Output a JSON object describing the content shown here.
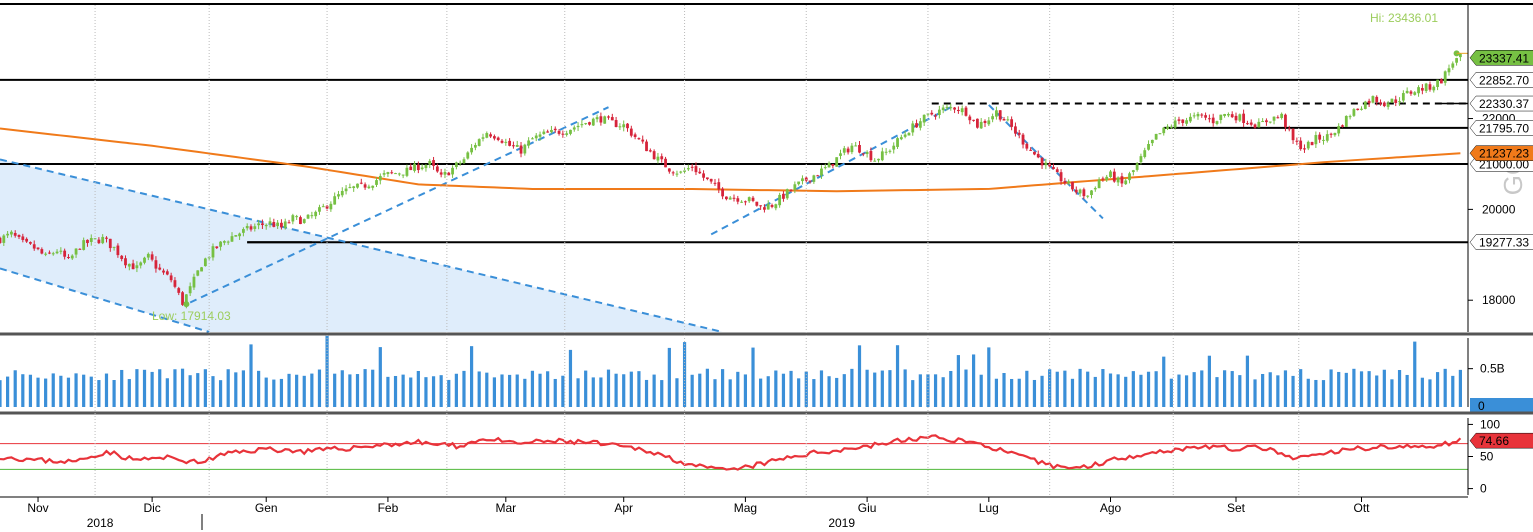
{
  "chart_data": {
    "type": "candlestick",
    "price_panel": {
      "ylim": [
        17300,
        24500
      ],
      "y_ticks": [
        {
          "value": 18000,
          "label": "18000"
        },
        {
          "value": 20000,
          "label": "20000"
        },
        {
          "value": 22000,
          "label": "22000"
        }
      ],
      "horizontal_levels": [
        {
          "value": 22852.7,
          "label": "22852.70",
          "style": "solid"
        },
        {
          "value": 22330.37,
          "label": "22330.37",
          "style": "dashed"
        },
        {
          "value": 21795.7,
          "label": "21795.70",
          "style": "solid"
        },
        {
          "value": 21000.0,
          "label": "21000.00",
          "style": "solid"
        },
        {
          "value": 19277.33,
          "label": "19277.33",
          "style": "solid"
        }
      ],
      "last_price": {
        "value": 23337.41,
        "label": "23337.41",
        "color": "#76c043"
      },
      "moving_average": {
        "value": 21237.23,
        "label": "21237.23",
        "color": "#f07a1a"
      },
      "high_annotation": {
        "text": "Hi: 23436.01",
        "value": 23436.01
      },
      "low_annotation": {
        "text": "Low: 17914.03",
        "value": 17914.03
      },
      "vertical_text": "GO",
      "close_path": [
        [
          0,
          19350
        ],
        [
          3,
          19450
        ],
        [
          6,
          19250
        ],
        [
          9,
          19150
        ],
        [
          12,
          18950
        ],
        [
          15,
          19100
        ],
        [
          18,
          18850
        ],
        [
          21,
          19200
        ],
        [
          24,
          19300
        ],
        [
          27,
          19350
        ],
        [
          30,
          19150
        ],
        [
          33,
          18850
        ],
        [
          36,
          18700
        ],
        [
          39,
          18950
        ],
        [
          42,
          18650
        ],
        [
          45,
          18450
        ],
        [
          48,
          17950
        ],
        [
          50,
          18250
        ],
        [
          53,
          18800
        ],
        [
          56,
          19100
        ],
        [
          59,
          19300
        ],
        [
          62,
          19450
        ],
        [
          65,
          19550
        ],
        [
          68,
          19650
        ],
        [
          71,
          19700
        ],
        [
          74,
          19600
        ],
        [
          77,
          19800
        ],
        [
          80,
          19750
        ],
        [
          83,
          19900
        ],
        [
          86,
          20100
        ],
        [
          89,
          20300
        ],
        [
          92,
          20450
        ],
        [
          95,
          20500
        ],
        [
          98,
          20600
        ],
        [
          101,
          20750
        ],
        [
          104,
          20800
        ],
        [
          107,
          20850
        ],
        [
          110,
          20950
        ],
        [
          113,
          21000
        ],
        [
          116,
          20700
        ],
        [
          119,
          20900
        ],
        [
          122,
          21100
        ],
        [
          125,
          21450
        ],
        [
          128,
          21700
        ],
        [
          131,
          21600
        ],
        [
          134,
          21400
        ],
        [
          137,
          21300
        ],
        [
          140,
          21550
        ],
        [
          143,
          21650
        ],
        [
          146,
          21700
        ],
        [
          149,
          21750
        ],
        [
          152,
          21850
        ],
        [
          155,
          21950
        ],
        [
          158,
          22000
        ],
        [
          161,
          21900
        ],
        [
          164,
          21850
        ],
        [
          167,
          21600
        ],
        [
          170,
          21350
        ],
        [
          173,
          21100
        ],
        [
          176,
          20900
        ],
        [
          179,
          20800
        ],
        [
          182,
          20950
        ],
        [
          185,
          20700
        ],
        [
          188,
          20500
        ],
        [
          191,
          20300
        ],
        [
          194,
          20250
        ],
        [
          197,
          20200
        ],
        [
          200,
          20050
        ],
        [
          203,
          20100
        ],
        [
          206,
          20300
        ],
        [
          209,
          20500
        ],
        [
          212,
          20650
        ],
        [
          215,
          20800
        ],
        [
          218,
          20950
        ],
        [
          221,
          21200
        ],
        [
          224,
          21400
        ],
        [
          227,
          21300
        ],
        [
          230,
          21100
        ],
        [
          233,
          21250
        ],
        [
          236,
          21500
        ],
        [
          239,
          21750
        ],
        [
          242,
          21950
        ],
        [
          245,
          22100
        ],
        [
          248,
          22200
        ],
        [
          251,
          22250
        ],
        [
          254,
          22150
        ],
        [
          257,
          21850
        ],
        [
          260,
          22000
        ],
        [
          262,
          22150
        ],
        [
          265,
          21900
        ],
        [
          268,
          21600
        ],
        [
          271,
          21300
        ],
        [
          274,
          21050
        ],
        [
          277,
          20800
        ],
        [
          280,
          20600
        ],
        [
          283,
          20400
        ],
        [
          286,
          20300
        ],
        [
          289,
          20650
        ],
        [
          292,
          20750
        ],
        [
          295,
          20550
        ],
        [
          298,
          20850
        ],
        [
          301,
          21250
        ],
        [
          304,
          21600
        ],
        [
          307,
          21800
        ],
        [
          310,
          21950
        ],
        [
          313,
          22000
        ],
        [
          316,
          22050
        ],
        [
          319,
          21950
        ],
        [
          322,
          22100
        ],
        [
          325,
          22050
        ],
        [
          328,
          21950
        ],
        [
          331,
          21850
        ],
        [
          334,
          22000
        ],
        [
          337,
          22050
        ],
        [
          340,
          21500
        ],
        [
          343,
          21350
        ],
        [
          346,
          21550
        ],
        [
          349,
          21600
        ],
        [
          352,
          21800
        ],
        [
          355,
          22100
        ],
        [
          358,
          22300
        ],
        [
          361,
          22450
        ],
        [
          364,
          22350
        ],
        [
          367,
          22400
        ],
        [
          370,
          22550
        ],
        [
          373,
          22650
        ],
        [
          376,
          22700
        ],
        [
          379,
          22850
        ],
        [
          382,
          23250
        ],
        [
          384,
          23337
        ]
      ],
      "trendlines": [
        {
          "from": [
            50,
            17950
          ],
          "to": [
            160,
            22250
          ],
          "color": "#3a8fd8",
          "style": "dashed"
        },
        {
          "from": [
            187,
            19450
          ],
          "to": [
            250,
            22250
          ],
          "color": "#3a8fd8",
          "style": "dashed"
        },
        {
          "from": [
            260,
            22300
          ],
          "to": [
            290,
            19800
          ],
          "color": "#3a8fd8",
          "style": "dashed"
        },
        {
          "from": [
            0,
            21100
          ],
          "to": [
            190,
            17300
          ],
          "color": "#3a8fd8",
          "style": "dashed"
        },
        {
          "from": [
            0,
            18700
          ],
          "to": [
            55,
            17300
          ],
          "color": "#3a8fd8",
          "style": "dashed"
        }
      ],
      "local_levels": [
        {
          "from": 65,
          "to": 82,
          "value": 19277.33
        },
        {
          "from": 245,
          "to": 270,
          "value": 22330.37,
          "style": "dashed"
        },
        {
          "from": 306,
          "to": 384,
          "value": 21795.7
        }
      ],
      "ma_path": [
        [
          0,
          21780
        ],
        [
          40,
          21400
        ],
        [
          80,
          20950
        ],
        [
          110,
          20550
        ],
        [
          140,
          20450
        ],
        [
          180,
          20450
        ],
        [
          220,
          20400
        ],
        [
          260,
          20450
        ],
        [
          290,
          20650
        ],
        [
          320,
          20850
        ],
        [
          350,
          21050
        ],
        [
          384,
          21237
        ]
      ]
    },
    "volume_panel": {
      "ylim": [
        0,
        0.9
      ],
      "y_ticks": [
        {
          "value": 0.5,
          "label": "0.5B"
        }
      ],
      "zero_label": "0",
      "color": "#3a8fd8"
    },
    "rsi_panel": {
      "ylim": [
        -10,
        110
      ],
      "y_ticks": [
        {
          "value": 100,
          "label": "100"
        },
        {
          "value": 50,
          "label": "50"
        },
        {
          "value": 0,
          "label": "0"
        }
      ],
      "upper_band": 70,
      "lower_band": 30,
      "last_value": {
        "value": 74.66,
        "label": "74.66"
      },
      "line_color": "#e8333a",
      "path": [
        [
          0,
          50
        ],
        [
          10,
          44
        ],
        [
          20,
          42
        ],
        [
          28,
          58
        ],
        [
          35,
          45
        ],
        [
          45,
          48
        ],
        [
          52,
          40
        ],
        [
          60,
          55
        ],
        [
          70,
          62
        ],
        [
          80,
          58
        ],
        [
          90,
          62
        ],
        [
          100,
          68
        ],
        [
          110,
          72
        ],
        [
          120,
          66
        ],
        [
          128,
          78
        ],
        [
          135,
          70
        ],
        [
          145,
          74
        ],
        [
          155,
          72
        ],
        [
          162,
          66
        ],
        [
          170,
          60
        ],
        [
          178,
          44
        ],
        [
          185,
          32
        ],
        [
          192,
          28
        ],
        [
          200,
          38
        ],
        [
          210,
          52
        ],
        [
          220,
          60
        ],
        [
          228,
          66
        ],
        [
          236,
          74
        ],
        [
          244,
          80
        ],
        [
          252,
          76
        ],
        [
          260,
          66
        ],
        [
          268,
          50
        ],
        [
          276,
          36
        ],
        [
          284,
          32
        ],
        [
          292,
          44
        ],
        [
          300,
          54
        ],
        [
          308,
          60
        ],
        [
          316,
          66
        ],
        [
          324,
          62
        ],
        [
          332,
          64
        ],
        [
          340,
          46
        ],
        [
          348,
          54
        ],
        [
          356,
          62
        ],
        [
          364,
          66
        ],
        [
          372,
          64
        ],
        [
          378,
          68
        ],
        [
          384,
          75
        ]
      ]
    },
    "x_axis": {
      "months": [
        {
          "label": "Nov",
          "index": 10
        },
        {
          "label": "Dic",
          "index": 40
        },
        {
          "label": "Gen",
          "index": 70
        },
        {
          "label": "Feb",
          "index": 102
        },
        {
          "label": "Mar",
          "index": 133
        },
        {
          "label": "Apr",
          "index": 164
        },
        {
          "label": "Mag",
          "index": 196
        },
        {
          "label": "Giu",
          "index": 228
        },
        {
          "label": "Lug",
          "index": 260
        },
        {
          "label": "Ago",
          "index": 292
        },
        {
          "label": "Set",
          "index": 325
        },
        {
          "label": "Ott",
          "index": 358
        }
      ],
      "years": [
        {
          "label": "2018",
          "index": 25
        },
        {
          "label": "2019",
          "index": 220
        }
      ]
    }
  }
}
